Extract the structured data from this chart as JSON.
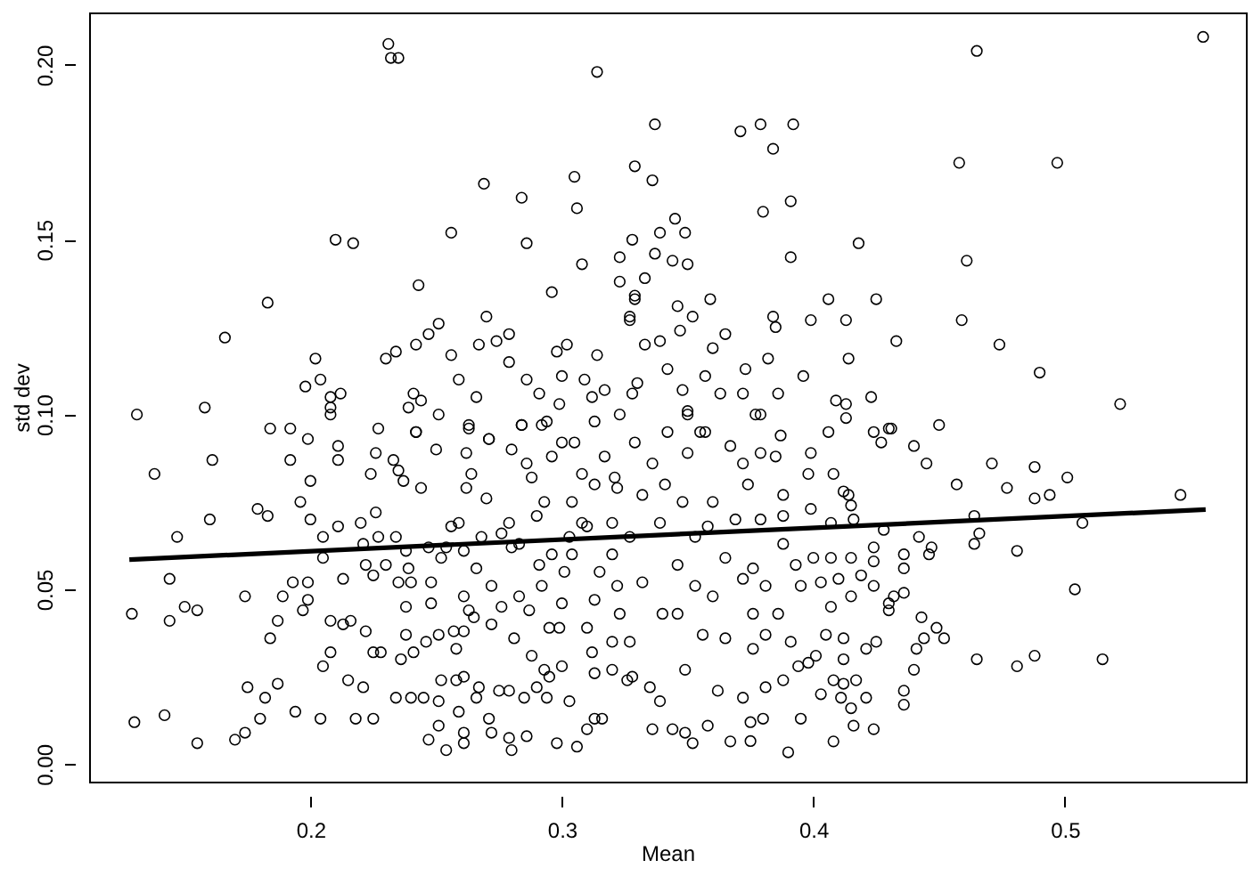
{
  "chart_data": {
    "type": "scatter",
    "xlabel": "Mean",
    "ylabel": "std dev",
    "xlim": [
      0.112,
      0.572
    ],
    "ylim": [
      -0.005,
      0.215
    ],
    "xticks": [
      0.2,
      0.3,
      0.4,
      0.5
    ],
    "yticks": [
      {
        "value": 0,
        "label": "0.00"
      },
      {
        "value": 0.05,
        "label": "0.05"
      },
      {
        "value": 0.1,
        "label": "0.10"
      },
      {
        "value": 0.15,
        "label": "0.15"
      },
      {
        "value": 0.2,
        "label": "0.20"
      }
    ],
    "grid": false,
    "series": [
      {
        "marker": "circle",
        "color": "#000000",
        "x": [
          0.231,
          0.232,
          0.235,
          0.314,
          0.465,
          0.555,
          0.337,
          0.371,
          0.379,
          0.392,
          0.384,
          0.329,
          0.336,
          0.458,
          0.497,
          0.391,
          0.38,
          0.461,
          0.459,
          0.474,
          0.49,
          0.522,
          0.418,
          0.391,
          0.345,
          0.425,
          0.406,
          0.433,
          0.269,
          0.284,
          0.305,
          0.306,
          0.21,
          0.217,
          0.256,
          0.286,
          0.183,
          0.166,
          0.243,
          0.296,
          0.308,
          0.131,
          0.158,
          0.202,
          0.251,
          0.27,
          0.23,
          0.198,
          0.291,
          0.314,
          0.302,
          0.259,
          0.138,
          0.129,
          0.13,
          0.142,
          0.155,
          0.147,
          0.16,
          0.161,
          0.144,
          0.15,
          0.155,
          0.144,
          0.17,
          0.174,
          0.175,
          0.174,
          0.179,
          0.183,
          0.182,
          0.18,
          0.187,
          0.194,
          0.184,
          0.192,
          0.184,
          0.187,
          0.189,
          0.193,
          0.199,
          0.192,
          0.199,
          0.2,
          0.196,
          0.2,
          0.205,
          0.205,
          0.197,
          0.199,
          0.205,
          0.208,
          0.208,
          0.213,
          0.211,
          0.211,
          0.211,
          0.204,
          0.218,
          0.215,
          0.221,
          0.213,
          0.216,
          0.222,
          0.225,
          0.225,
          0.228,
          0.224,
          0.226,
          0.227,
          0.226,
          0.227,
          0.22,
          0.221,
          0.222,
          0.225,
          0.23,
          0.234,
          0.233,
          0.235,
          0.237,
          0.244,
          0.242,
          0.25,
          0.251,
          0.238,
          0.239,
          0.24,
          0.235,
          0.238,
          0.238,
          0.236,
          0.241,
          0.234,
          0.24,
          0.245,
          0.246,
          0.251,
          0.248,
          0.248,
          0.247,
          0.252,
          0.254,
          0.251,
          0.251,
          0.247,
          0.254,
          0.252,
          0.258,
          0.261,
          0.259,
          0.261,
          0.261,
          0.258,
          0.261,
          0.257,
          0.259,
          0.262,
          0.263,
          0.262,
          0.261,
          0.263,
          0.265,
          0.267,
          0.266,
          0.271,
          0.272,
          0.27,
          0.271,
          0.272,
          0.272,
          0.276,
          0.275,
          0.279,
          0.279,
          0.28,
          0.286,
          0.285,
          0.281,
          0.283,
          0.287,
          0.284,
          0.28,
          0.286,
          0.279,
          0.283,
          0.29,
          0.288,
          0.293,
          0.295,
          0.294,
          0.298,
          0.306,
          0.303,
          0.3,
          0.295,
          0.299,
          0.3,
          0.292,
          0.291,
          0.296,
          0.303,
          0.293,
          0.296,
          0.3,
          0.292,
          0.305,
          0.308,
          0.304,
          0.308,
          0.31,
          0.312,
          0.313,
          0.31,
          0.313,
          0.316,
          0.313,
          0.315,
          0.313,
          0.336,
          0.344,
          0.349,
          0.352,
          0.358,
          0.367,
          0.375,
          0.39,
          0.408,
          0.416,
          0.424,
          0.375,
          0.38,
          0.395,
          0.436,
          0.436,
          0.44,
          0.441,
          0.444,
          0.452,
          0.449,
          0.443,
          0.465,
          0.481,
          0.488,
          0.515,
          0.504,
          0.481,
          0.464,
          0.466,
          0.464,
          0.507,
          0.546,
          0.494,
          0.488,
          0.477,
          0.501,
          0.488,
          0.471,
          0.457,
          0.445,
          0.44,
          0.45,
          0.442,
          0.447,
          0.446,
          0.436,
          0.436,
          0.436,
          0.432,
          0.43,
          0.43,
          0.424,
          0.424,
          0.424,
          0.428,
          0.425,
          0.421,
          0.417,
          0.421,
          0.415,
          0.411,
          0.412,
          0.408,
          0.403,
          0.412,
          0.412,
          0.405,
          0.401,
          0.398,
          0.394,
          0.415,
          0.407,
          0.403,
          0.41,
          0.419,
          0.407,
          0.415,
          0.4,
          0.416,
          0.414,
          0.412,
          0.415,
          0.407,
          0.399,
          0.398,
          0.408,
          0.399,
          0.406,
          0.387,
          0.379,
          0.424,
          0.427,
          0.431,
          0.413,
          0.377,
          0.385,
          0.372,
          0.367,
          0.355,
          0.342,
          0.329,
          0.35,
          0.323,
          0.341,
          0.348,
          0.339,
          0.353,
          0.346,
          0.34,
          0.332,
          0.327,
          0.335,
          0.339,
          0.349,
          0.356,
          0.365,
          0.362,
          0.372,
          0.381,
          0.388,
          0.376,
          0.381,
          0.391,
          0.376,
          0.386,
          0.395,
          0.381,
          0.372,
          0.365,
          0.376,
          0.388,
          0.393,
          0.369,
          0.379,
          0.388,
          0.374,
          0.388,
          0.36,
          0.358,
          0.36,
          0.353,
          0.346,
          0.322,
          0.32,
          0.328,
          0.32,
          0.321,
          0.336,
          0.332,
          0.35,
          0.264,
          0.276,
          0.28,
          0.288,
          0.29,
          0.301,
          0.304,
          0.31,
          0.313,
          0.317,
          0.322,
          0.32,
          0.323,
          0.326,
          0.32,
          0.327,
          0.261,
          0.266,
          0.268,
          0.256,
          0.266,
          0.274,
          0.279,
          0.286,
          0.299,
          0.317,
          0.328,
          0.327,
          0.329,
          0.323,
          0.323,
          0.328,
          0.339,
          0.349,
          0.35,
          0.344,
          0.337,
          0.333,
          0.329,
          0.327,
          0.346,
          0.359,
          0.352,
          0.347,
          0.339,
          0.333,
          0.36,
          0.365,
          0.384,
          0.385,
          0.399,
          0.413,
          0.414,
          0.382,
          0.373,
          0.357,
          0.342,
          0.396,
          0.423,
          0.409,
          0.413,
          0.386,
          0.372,
          0.363,
          0.348,
          0.33,
          0.43,
          0.357,
          0.35,
          0.379,
          0.3,
          0.309,
          0.312,
          0.279,
          0.298,
          0.242,
          0.247,
          0.234,
          0.256,
          0.267,
          0.241,
          0.244,
          0.239,
          0.208,
          0.212,
          0.208,
          0.208,
          0.204,
          0.242,
          0.263,
          0.271,
          0.284,
          0.294
        ],
        "values": [
          0.206,
          0.202,
          0.202,
          0.198,
          0.204,
          0.208,
          0.183,
          0.181,
          0.183,
          0.183,
          0.176,
          0.171,
          0.167,
          0.172,
          0.172,
          0.161,
          0.158,
          0.144,
          0.127,
          0.12,
          0.112,
          0.103,
          0.149,
          0.145,
          0.156,
          0.133,
          0.133,
          0.121,
          0.166,
          0.162,
          0.168,
          0.159,
          0.15,
          0.149,
          0.152,
          0.149,
          0.132,
          0.122,
          0.137,
          0.135,
          0.143,
          0.1,
          0.102,
          0.116,
          0.126,
          0.128,
          0.116,
          0.108,
          0.106,
          0.117,
          0.12,
          0.11,
          0.083,
          0.043,
          0.012,
          0.014,
          0.006,
          0.065,
          0.07,
          0.087,
          0.053,
          0.045,
          0.044,
          0.041,
          0.007,
          0.009,
          0.022,
          0.048,
          0.073,
          0.071,
          0.019,
          0.013,
          0.023,
          0.015,
          0.096,
          0.096,
          0.036,
          0.041,
          0.048,
          0.052,
          0.052,
          0.087,
          0.093,
          0.081,
          0.075,
          0.07,
          0.059,
          0.065,
          0.044,
          0.047,
          0.028,
          0.032,
          0.041,
          0.053,
          0.091,
          0.087,
          0.068,
          0.013,
          0.013,
          0.024,
          0.022,
          0.04,
          0.041,
          0.038,
          0.013,
          0.032,
          0.032,
          0.083,
          0.089,
          0.096,
          0.072,
          0.065,
          0.069,
          0.063,
          0.057,
          0.054,
          0.057,
          0.065,
          0.087,
          0.084,
          0.081,
          0.079,
          0.095,
          0.09,
          0.1,
          0.061,
          0.056,
          0.052,
          0.052,
          0.045,
          0.037,
          0.03,
          0.032,
          0.019,
          0.019,
          0.019,
          0.035,
          0.037,
          0.046,
          0.052,
          0.062,
          0.059,
          0.062,
          0.018,
          0.011,
          0.007,
          0.004,
          0.024,
          0.024,
          0.025,
          0.015,
          0.009,
          0.006,
          0.033,
          0.038,
          0.038,
          0.069,
          0.089,
          0.097,
          0.079,
          0.048,
          0.044,
          0.042,
          0.022,
          0.019,
          0.013,
          0.009,
          0.076,
          0.093,
          0.051,
          0.04,
          0.045,
          0.021,
          0.021,
          0.0075,
          0.004,
          0.008,
          0.019,
          0.036,
          0.048,
          0.044,
          0.097,
          0.09,
          0.086,
          0.069,
          0.063,
          0.022,
          0.031,
          0.027,
          0.025,
          0.019,
          0.006,
          0.005,
          0.018,
          0.028,
          0.039,
          0.039,
          0.046,
          0.051,
          0.057,
          0.06,
          0.065,
          0.075,
          0.088,
          0.092,
          0.097,
          0.092,
          0.083,
          0.075,
          0.069,
          0.039,
          0.032,
          0.026,
          0.01,
          0.013,
          0.013,
          0.098,
          0.055,
          0.047,
          0.01,
          0.01,
          0.009,
          0.006,
          0.011,
          0.0065,
          0.0066,
          0.0034,
          0.0065,
          0.011,
          0.01,
          0.012,
          0.013,
          0.013,
          0.017,
          0.021,
          0.027,
          0.033,
          0.036,
          0.036,
          0.039,
          0.042,
          0.03,
          0.028,
          0.031,
          0.03,
          0.05,
          0.061,
          0.063,
          0.066,
          0.071,
          0.069,
          0.077,
          0.077,
          0.076,
          0.079,
          0.082,
          0.085,
          0.086,
          0.08,
          0.086,
          0.091,
          0.097,
          0.065,
          0.062,
          0.06,
          0.056,
          0.06,
          0.049,
          0.048,
          0.046,
          0.044,
          0.051,
          0.058,
          0.062,
          0.067,
          0.035,
          0.033,
          0.024,
          0.019,
          0.016,
          0.019,
          0.023,
          0.024,
          0.02,
          0.03,
          0.036,
          0.037,
          0.031,
          0.029,
          0.028,
          0.048,
          0.045,
          0.052,
          0.053,
          0.054,
          0.059,
          0.059,
          0.059,
          0.07,
          0.077,
          0.078,
          0.074,
          0.069,
          0.073,
          0.083,
          0.083,
          0.089,
          0.095,
          0.094,
          0.089,
          0.095,
          0.092,
          0.096,
          0.099,
          0.1,
          0.088,
          0.086,
          0.091,
          0.095,
          0.095,
          0.092,
          0.1,
          0.1,
          0.08,
          0.075,
          0.069,
          0.065,
          0.057,
          0.043,
          0.052,
          0.035,
          0.022,
          0.018,
          0.027,
          0.037,
          0.036,
          0.021,
          0.019,
          0.022,
          0.024,
          0.033,
          0.037,
          0.035,
          0.043,
          0.043,
          0.051,
          0.051,
          0.053,
          0.059,
          0.056,
          0.063,
          0.057,
          0.07,
          0.07,
          0.071,
          0.08,
          0.077,
          0.075,
          0.068,
          0.048,
          0.051,
          0.043,
          0.051,
          0.027,
          0.025,
          0.069,
          0.082,
          0.086,
          0.077,
          0.089,
          0.083,
          0.066,
          0.062,
          0.082,
          0.071,
          0.055,
          0.06,
          0.068,
          0.08,
          0.088,
          0.079,
          0.06,
          0.043,
          0.024,
          0.035,
          0.065,
          0.061,
          0.056,
          0.065,
          0.068,
          0.105,
          0.121,
          0.123,
          0.11,
          0.103,
          0.107,
          0.106,
          0.128,
          0.133,
          0.138,
          0.145,
          0.15,
          0.152,
          0.152,
          0.143,
          0.144,
          0.146,
          0.139,
          0.134,
          0.127,
          0.131,
          0.133,
          0.128,
          0.124,
          0.121,
          0.12,
          0.119,
          0.123,
          0.128,
          0.125,
          0.127,
          0.127,
          0.116,
          0.116,
          0.113,
          0.111,
          0.113,
          0.111,
          0.105,
          0.104,
          0.103,
          0.106,
          0.106,
          0.106,
          0.107,
          0.109,
          0.096,
          0.095,
          0.101,
          0.1,
          0.111,
          0.11,
          0.105,
          0.115,
          0.118,
          0.12,
          0.123,
          0.118,
          0.117,
          0.12,
          0.106,
          0.104,
          0.102,
          0.105,
          0.106,
          0.102,
          0.1,
          0.11,
          0.095,
          0.096,
          0.093,
          0.097,
          0.098
        ]
      },
      {
        "type": "line",
        "color": "#000000",
        "x": [
          0.128,
          0.556
        ],
        "values": [
          0.0585,
          0.0728
        ]
      }
    ]
  }
}
